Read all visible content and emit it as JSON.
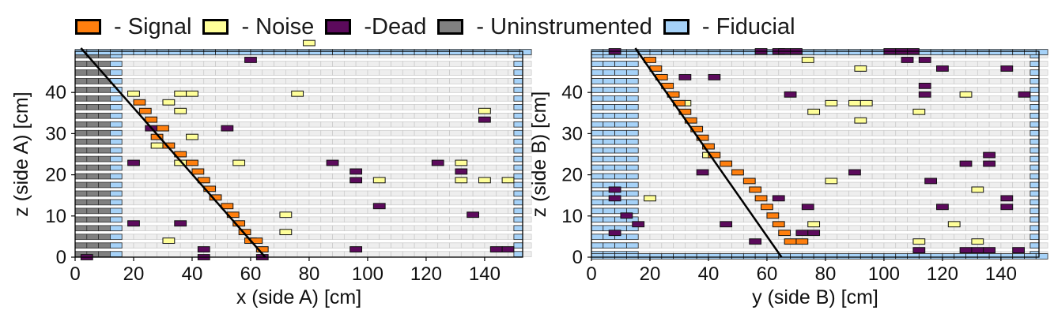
{
  "legend": [
    {
      "label": " - Signal",
      "color": "#ff7f0e"
    },
    {
      "label": " - Noise",
      "color": "#ffff99"
    },
    {
      "label": " -Dead",
      "color": "#5c0a5c"
    },
    {
      "label": " - Uninstrumented",
      "color": "#808080"
    },
    {
      "label": " - Fiducial",
      "color": "#a6d2f8"
    }
  ],
  "colors": {
    "Signal": "#ff7f0e",
    "Noise": "#ffff99",
    "Dead": "#5c0a5c",
    "Uninstrumented": "#808080",
    "Fiducial": "#a6d2f8",
    "Inactive": "#eeeeee",
    "Track": "#000000"
  },
  "chart_data": [
    {
      "type": "heatmap",
      "xlabel": "x (side A) [cm]",
      "ylabel": "z (side A) [cm]",
      "xlim": [
        0,
        153
      ],
      "ylim": [
        0,
        50
      ],
      "xticks": [
        0,
        20,
        40,
        60,
        80,
        100,
        120,
        140
      ],
      "yticks": [
        0,
        10,
        20,
        30,
        40
      ],
      "strip_width": 4,
      "row_pitch": 2.1,
      "row_count": 24,
      "uninstrumented_x": [
        0,
        12
      ],
      "fiducial_edges_x": [
        [
          12,
          16
        ],
        [
          150,
          153
        ]
      ],
      "fiducial_top_row": true,
      "track": {
        "x": [
          2,
          65
        ],
        "z": [
          50,
          0
        ]
      },
      "signal": [
        [
          20,
          37.6
        ],
        [
          22,
          35.5
        ],
        [
          24,
          33.4
        ],
        [
          26,
          29.2
        ],
        [
          28,
          31.3
        ],
        [
          30,
          27.1
        ],
        [
          34,
          25
        ],
        [
          38,
          22.9
        ],
        [
          40,
          20.8
        ],
        [
          42,
          18.7
        ],
        [
          44,
          16.6
        ],
        [
          46,
          14.5
        ],
        [
          50,
          12.4
        ],
        [
          52,
          10.3
        ],
        [
          54,
          8.2
        ],
        [
          56,
          6.1
        ],
        [
          58,
          4
        ],
        [
          60,
          4
        ],
        [
          62,
          1.9
        ]
      ],
      "noise": [
        [
          18,
          39.7
        ],
        [
          30,
          37.6
        ],
        [
          34,
          39.7
        ],
        [
          38,
          39.7
        ],
        [
          34,
          35.5
        ],
        [
          38,
          29.2
        ],
        [
          26,
          27.1
        ],
        [
          34,
          22.9
        ],
        [
          54,
          22.9
        ],
        [
          74,
          39.7
        ],
        [
          78,
          52
        ],
        [
          70,
          10.3
        ],
        [
          70,
          6.1
        ],
        [
          30,
          4
        ],
        [
          102,
          18.7
        ],
        [
          130,
          22.9
        ],
        [
          130,
          18.7
        ],
        [
          138,
          18.7
        ],
        [
          146,
          18.7
        ],
        [
          138,
          35.5
        ]
      ],
      "dead": [
        [
          42,
          1.9
        ],
        [
          42,
          0
        ],
        [
          62,
          0
        ],
        [
          2,
          0
        ],
        [
          58,
          47.9
        ],
        [
          24,
          31.3
        ],
        [
          50,
          31.3
        ],
        [
          18,
          22.9
        ],
        [
          34,
          8.2
        ],
        [
          18,
          8.2
        ],
        [
          86,
          22.9
        ],
        [
          94,
          20.8
        ],
        [
          94,
          18.7
        ],
        [
          102,
          12.4
        ],
        [
          122,
          22.9
        ],
        [
          130,
          20.8
        ],
        [
          134,
          10.3
        ],
        [
          94,
          1.9
        ],
        [
          142,
          1.9
        ],
        [
          146,
          1.9
        ],
        [
          138,
          33.4
        ]
      ]
    },
    {
      "type": "heatmap",
      "xlabel": "y (side B) [cm]",
      "ylabel": "z (side B) [cm]",
      "xlim": [
        0,
        153
      ],
      "ylim": [
        0,
        50
      ],
      "xticks": [
        0,
        20,
        40,
        60,
        80,
        100,
        120,
        140
      ],
      "yticks": [
        0,
        10,
        20,
        30,
        40
      ],
      "strip_width": 4,
      "row_pitch": 2.1,
      "row_count": 24,
      "uninstrumented_x": [],
      "fiducial_edges_x": [
        [
          0,
          16
        ],
        [
          150,
          153
        ]
      ],
      "fiducial_top_row": true,
      "fiducial_bottom_row": true,
      "track": {
        "x": [
          15,
          65
        ],
        "z": [
          50,
          0
        ]
      },
      "signal": [
        [
          18,
          47.9
        ],
        [
          20,
          45.8
        ],
        [
          22,
          43.7
        ],
        [
          24,
          41.6
        ],
        [
          26,
          39.5
        ],
        [
          28,
          37.4
        ],
        [
          30,
          35.3
        ],
        [
          32,
          33.2
        ],
        [
          34,
          31.1
        ],
        [
          36,
          29
        ],
        [
          38,
          26.9
        ],
        [
          40,
          24.8
        ],
        [
          44,
          22.7
        ],
        [
          48,
          20.6
        ],
        [
          52,
          18.5
        ],
        [
          54,
          16.4
        ],
        [
          56,
          14.3
        ],
        [
          58,
          12.2
        ],
        [
          60,
          10.1
        ],
        [
          62,
          8
        ],
        [
          64,
          5.9
        ],
        [
          66,
          3.8
        ],
        [
          70,
          3.8
        ]
      ],
      "noise": [
        [
          30,
          37.4
        ],
        [
          38,
          24.8
        ],
        [
          72,
          47.9
        ],
        [
          90,
          45.8
        ],
        [
          80,
          37.4
        ],
        [
          88,
          37.4
        ],
        [
          92,
          37.4
        ],
        [
          74,
          35.3
        ],
        [
          90,
          33.2
        ],
        [
          110,
          35.3
        ],
        [
          126,
          39.5
        ],
        [
          80,
          18.5
        ],
        [
          130,
          16.4
        ],
        [
          18,
          14.3
        ],
        [
          74,
          8
        ],
        [
          122,
          8
        ],
        [
          110,
          3.8
        ],
        [
          130,
          3.8
        ]
      ],
      "dead": [
        [
          6,
          50
        ],
        [
          56,
          50
        ],
        [
          62,
          50
        ],
        [
          64,
          50
        ],
        [
          68,
          50
        ],
        [
          100,
          50
        ],
        [
          104,
          50
        ],
        [
          108,
          50
        ],
        [
          106,
          47.9
        ],
        [
          112,
          47.9
        ],
        [
          118,
          45.8
        ],
        [
          140,
          45.8
        ],
        [
          30,
          43.7
        ],
        [
          40,
          43.7
        ],
        [
          112,
          41.6
        ],
        [
          66,
          39.5
        ],
        [
          112,
          39.5
        ],
        [
          146,
          39.5
        ],
        [
          36,
          20.6
        ],
        [
          88,
          20.6
        ],
        [
          134,
          24.8
        ],
        [
          134,
          22.7
        ],
        [
          126,
          22.7
        ],
        [
          114,
          18.5
        ],
        [
          6,
          16.4
        ],
        [
          6,
          14.3
        ],
        [
          62,
          14.3
        ],
        [
          72,
          12.2
        ],
        [
          118,
          12.2
        ],
        [
          140,
          14.3
        ],
        [
          140,
          12.2
        ],
        [
          10,
          10.1
        ],
        [
          14,
          8
        ],
        [
          44,
          8
        ],
        [
          6,
          5.9
        ],
        [
          70,
          5.9
        ],
        [
          74,
          5.9
        ],
        [
          54,
          3.8
        ],
        [
          110,
          1.7
        ],
        [
          126,
          1.7
        ],
        [
          130,
          1.7
        ],
        [
          134,
          1.7
        ],
        [
          144,
          1.7
        ]
      ]
    }
  ]
}
